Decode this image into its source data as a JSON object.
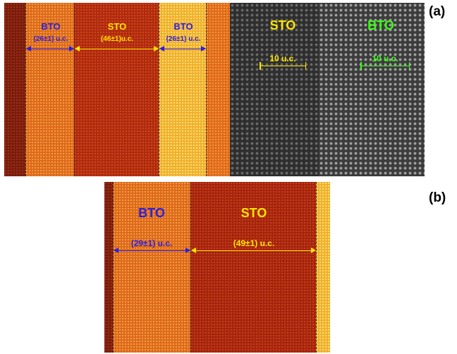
{
  "panel_a": {
    "tag": "(a)",
    "left_labels": {
      "bto1": "BTO",
      "sto": "STO",
      "bto2": "BTO",
      "bto1_thickness": "(26±1) u.c.",
      "sto_thickness": "(46±1)u.c.",
      "bto2_thickness": "(26±1) u.c."
    },
    "right_labels": {
      "sto": "STO",
      "bto": "BTO",
      "sto_scale": "10 u.c.",
      "bto_scale": "10 u.c."
    }
  },
  "panel_b": {
    "tag": "(b)",
    "labels": {
      "bto": "BTO",
      "sto": "STO",
      "bto_thickness": "(29±1) u.c.",
      "sto_thickness": "(49±1) u.c."
    }
  },
  "colors": {
    "bto_label": "#2b1fe0",
    "sto_label": "#ffe600",
    "bto_scale": "#39ff14",
    "bto_stripe": "#e8711c",
    "sto_stripe": "#b5280f",
    "bright_stripe": "#f7c53a"
  }
}
